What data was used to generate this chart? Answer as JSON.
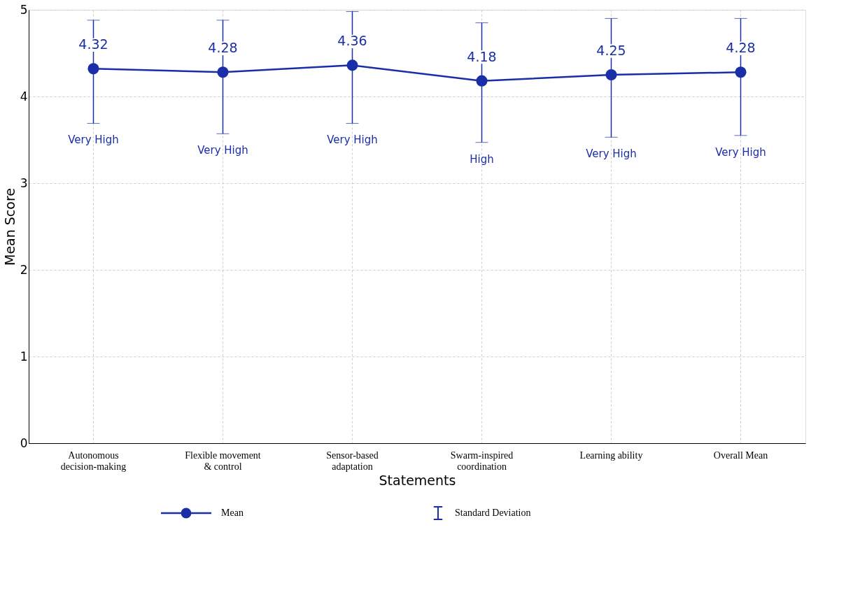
{
  "chart_data": {
    "type": "line",
    "xlabel": "Statements",
    "ylabel": "Mean Score",
    "categories": [
      "Autonomous decision-making",
      "Flexible movement & control",
      "Sensor-based adaptation",
      "Swarm-inspired coordination",
      "Learning ability",
      "Overall Mean"
    ],
    "series": [
      {
        "name": "Mean",
        "color": "#1a2ea8",
        "values": [
          4.32,
          4.28,
          4.36,
          4.18,
          4.25,
          4.28
        ],
        "errors": [
          [
            3.69,
            4.88
          ],
          [
            3.57,
            4.88
          ],
          [
            3.69,
            4.98
          ],
          [
            3.47,
            4.85
          ],
          [
            3.53,
            4.9
          ],
          [
            3.55,
            4.9
          ]
        ],
        "value_labels": [
          "4.32",
          "4.28",
          "4.36",
          "4.18",
          "4.25",
          "4.28"
        ]
      }
    ],
    "ylim": [
      0,
      5
    ],
    "yticks": [
      0,
      1,
      2,
      3,
      4,
      5
    ],
    "grid": true,
    "legend": "bottom",
    "marker": "circle",
    "line_style": "solid",
    "annotations": [
      "Standard Deviation",
      "Very High",
      "Very High",
      "Very High",
      "High",
      "Very High",
      "Very High"
    ]
  }
}
